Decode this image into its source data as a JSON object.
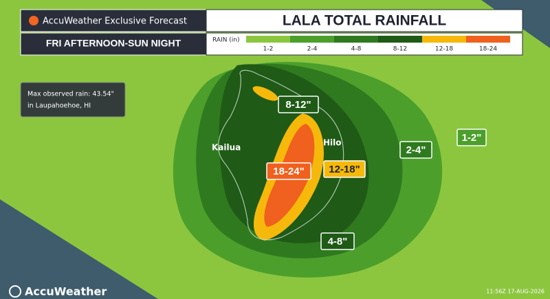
{
  "header": {
    "brand": "AccuWeather Exclusive Forecast",
    "title": "LALA TOTAL RAINFALL",
    "period": "FRI AFTERNOON-SUN NIGHT"
  },
  "legend": {
    "title": "RAIN (in)",
    "items": [
      {
        "label": "1-2",
        "color": "#8cc63f"
      },
      {
        "label": "2-4",
        "color": "#4c9f2b"
      },
      {
        "label": "4-8",
        "color": "#2f7a1f"
      },
      {
        "label": "8-12",
        "color": "#1f5a16"
      },
      {
        "label": "12-18",
        "color": "#f6b90b"
      },
      {
        "label": "18-24",
        "color": "#f0601e"
      }
    ]
  },
  "note": {
    "line1": "Max observed rain: 43.54\"",
    "line2": "in Laupahoehoe, HI"
  },
  "cities": [
    "Kailua",
    "Hilo"
  ],
  "map_labels": [
    "8-12\"",
    "18-24\"",
    "12-18\"",
    "2-4\"",
    "1-2\"",
    "4-8\""
  ],
  "footer": {
    "logo": "AccuWeather",
    "timestamp": "11:56Z 17-AUG-2026"
  }
}
